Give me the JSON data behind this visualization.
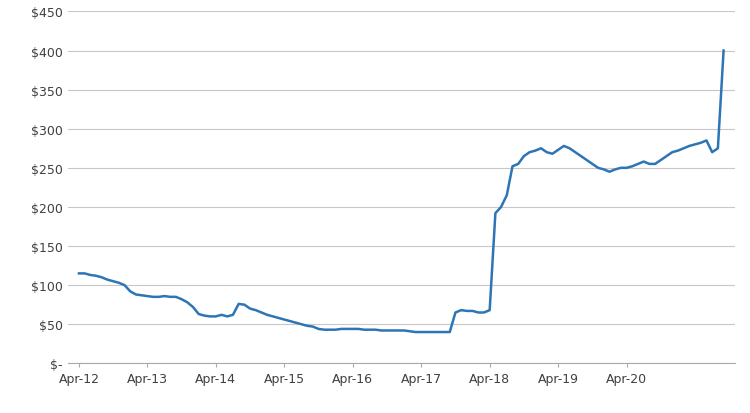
{
  "title": "",
  "line_color": "#2E75B6",
  "line_width": 1.8,
  "background_color": "#ffffff",
  "grid_color": "#c8c8c8",
  "ylim": [
    0,
    450
  ],
  "yticks": [
    0,
    50,
    100,
    150,
    200,
    250,
    300,
    350,
    400,
    450
  ],
  "x_labels": [
    "Apr-12",
    "Apr-13",
    "Apr-14",
    "Apr-15",
    "Apr-16",
    "Apr-17",
    "Apr-18",
    "Apr-19",
    "Apr-20"
  ],
  "prices": [
    115,
    115,
    113,
    112,
    110,
    107,
    105,
    103,
    100,
    92,
    88,
    87,
    86,
    85,
    85,
    86,
    85,
    85,
    82,
    78,
    72,
    63,
    61,
    60,
    60,
    62,
    60,
    62,
    76,
    75,
    70,
    68,
    65,
    62,
    60,
    58,
    56,
    54,
    52,
    50,
    48,
    47,
    44,
    43,
    43,
    43,
    44,
    44,
    44,
    44,
    43,
    43,
    43,
    42,
    42,
    42,
    42,
    42,
    41,
    40,
    40,
    40,
    40,
    40,
    40,
    40,
    65,
    68,
    67,
    67,
    65,
    65,
    68,
    192,
    200,
    215,
    252,
    255,
    265,
    270,
    272,
    275,
    270,
    268,
    273,
    278,
    275,
    270,
    265,
    260,
    255,
    250,
    248,
    245,
    248,
    250,
    250,
    252,
    255,
    258,
    255,
    255,
    260,
    265,
    270,
    272,
    275,
    278,
    280,
    282,
    285,
    270,
    275,
    400
  ]
}
